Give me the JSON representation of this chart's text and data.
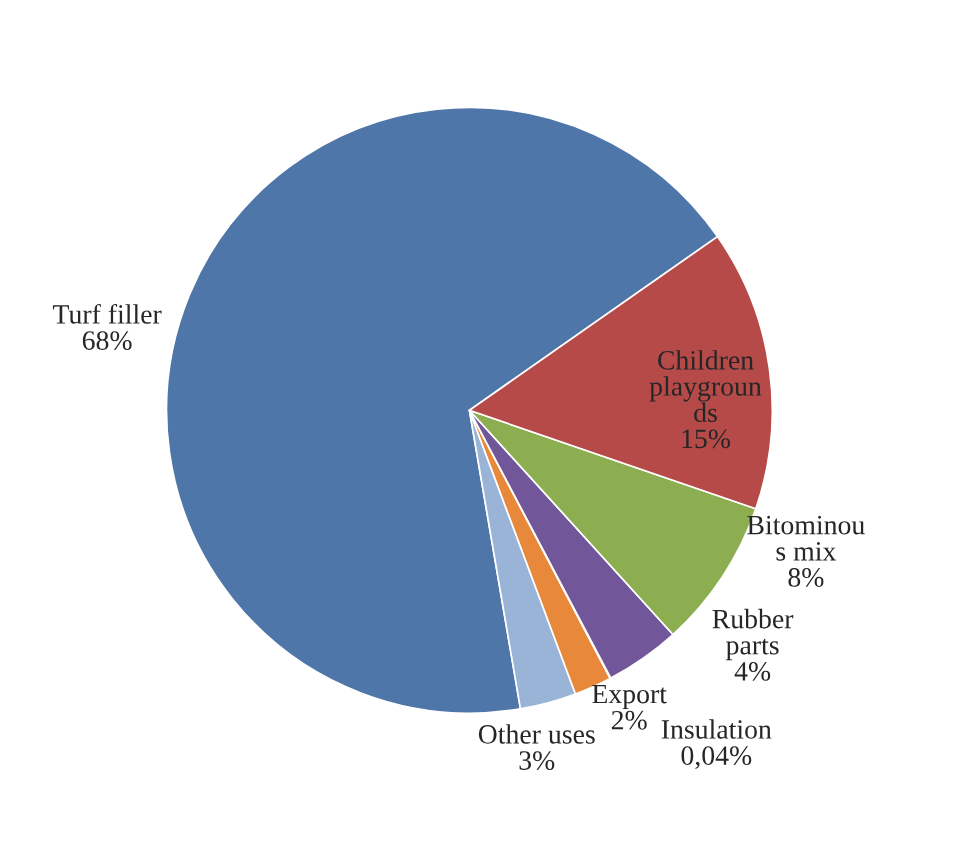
{
  "chart_data": {
    "type": "pie",
    "categories": [
      "Turf filler",
      "Other uses",
      "Export",
      "Insulation",
      "Rubber\nparts",
      "Bitominou\ns mix",
      "Children\nplaygroun\nds"
    ],
    "values": [
      68,
      3,
      2,
      0.04,
      4,
      8,
      15
    ],
    "value_labels": [
      "68%",
      "3%",
      "2%",
      "0,04%",
      "4%",
      "8%",
      "15%"
    ],
    "colors": [
      "#4f76a8",
      "#9ab4d8",
      "#e8883a",
      "#3fa6c0",
      "#72569a",
      "#8cae50",
      "#b54a48"
    ]
  }
}
